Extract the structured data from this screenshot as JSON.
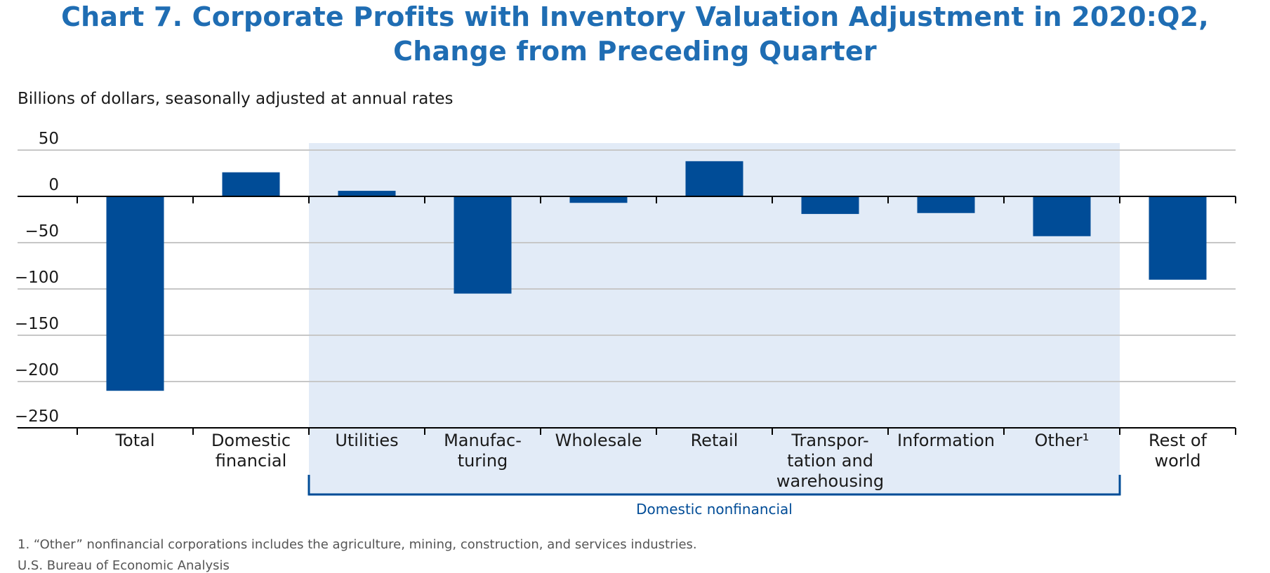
{
  "chart_data": {
    "type": "bar",
    "title": "Chart 7. Corporate Profits with Inventory Valuation Adjustment in 2020:Q2,",
    "subtitle": "Change from Preceding Quarter",
    "units_note": "Billions of dollars, seasonally adjusted at annual rates",
    "categories": [
      [
        "Total"
      ],
      [
        "Domestic",
        "financial"
      ],
      [
        "Utilities"
      ],
      [
        "Manufac-",
        "turing"
      ],
      [
        "Wholesale"
      ],
      [
        "Retail"
      ],
      [
        "Transpor-",
        "tation and",
        "warehousing"
      ],
      [
        "Information"
      ],
      [
        "Other¹"
      ],
      [
        "Rest of",
        "world"
      ]
    ],
    "values": [
      -210,
      26,
      6,
      -105,
      -7,
      38,
      -19,
      -18,
      -43,
      -90
    ],
    "ylim": [
      -250,
      50
    ],
    "yticks": [
      50,
      0,
      -50,
      -100,
      -150,
      -200,
      -250
    ],
    "ytick_labels": [
      "50",
      "0",
      "−50",
      "−100",
      "−150",
      "−200",
      "−250"
    ],
    "grid": true,
    "bar_color": "#004c97",
    "group": {
      "label": "Domestic nonfinancial",
      "first_index": 2,
      "last_index": 8,
      "shade_color": "#e2ebf7",
      "bracket_color": "#004c97"
    },
    "footnote": "1. “Other” nonfinancial corporations includes the agriculture, mining, construction, and services industries.",
    "source": "U.S. Bureau of Economic Analysis"
  }
}
